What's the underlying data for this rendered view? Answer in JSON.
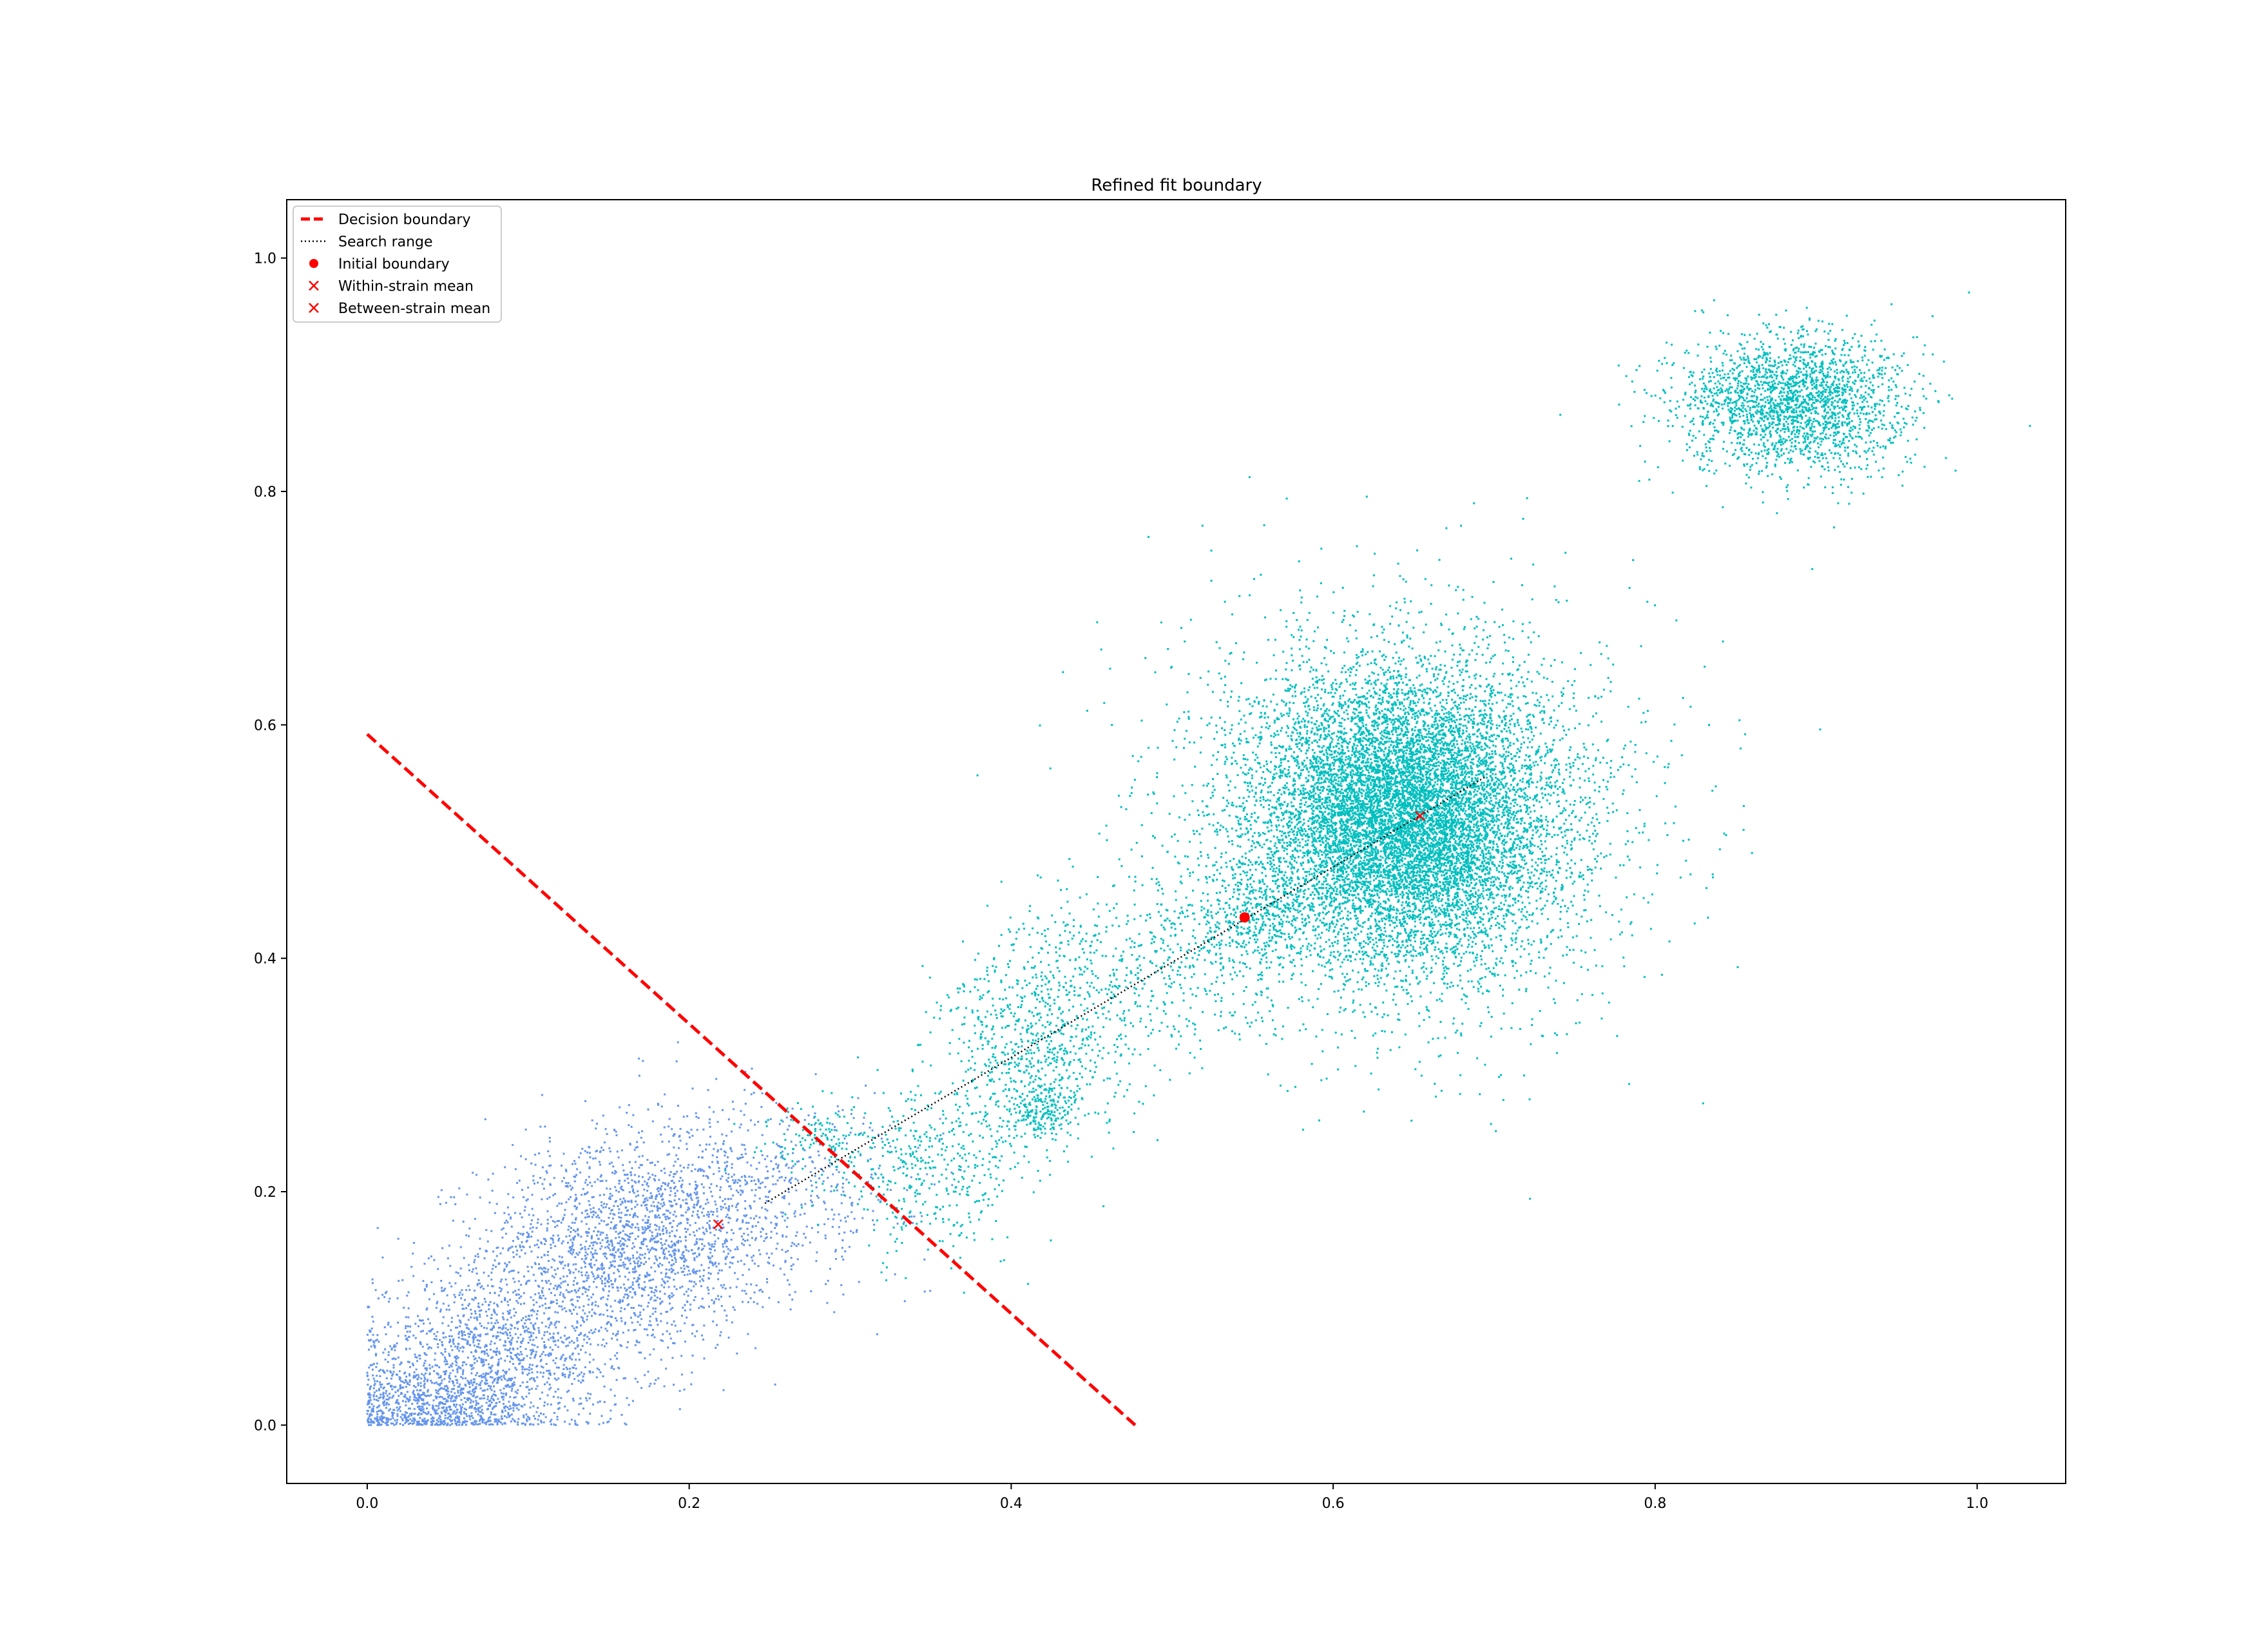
{
  "chart_data": {
    "type": "scatter",
    "title": "Refined fit boundary",
    "xlabel": "",
    "ylabel": "",
    "xlim": [
      -0.05,
      1.055
    ],
    "ylim": [
      -0.05,
      1.05
    ],
    "grid": false,
    "legend_placement": "top-left",
    "x_ticks": [
      {
        "value": 0.0,
        "label": "0.0"
      },
      {
        "value": 0.2,
        "label": "0.2"
      },
      {
        "value": 0.4,
        "label": "0.4"
      },
      {
        "value": 0.6,
        "label": "0.6"
      },
      {
        "value": 0.8,
        "label": "0.8"
      },
      {
        "value": 1.0,
        "label": "1.0"
      }
    ],
    "y_ticks": [
      {
        "value": 0.0,
        "label": "0.0"
      },
      {
        "value": 0.2,
        "label": "0.2"
      },
      {
        "value": 0.4,
        "label": "0.4"
      },
      {
        "value": 0.6,
        "label": "0.6"
      },
      {
        "value": 0.8,
        "label": "0.8"
      },
      {
        "value": 1.0,
        "label": "1.0"
      }
    ],
    "series": [
      {
        "kind": "points",
        "color": "#6495ed",
        "clusters": [
          {
            "center": [
              0.16,
              0.15
            ],
            "spread": [
              0.045,
              0.04
            ],
            "count": 1500
          },
          {
            "center": [
              0.08,
              0.06
            ],
            "spread": [
              0.045,
              0.035
            ],
            "count": 1400
          },
          {
            "center": [
              0.04,
              0.015
            ],
            "spread": [
              0.03,
              0.015
            ],
            "count": 700
          },
          {
            "center": [
              0.2,
              0.19
            ],
            "spread": [
              0.05,
              0.045
            ],
            "count": 700
          },
          {
            "center": [
              0.27,
              0.21
            ],
            "spread": [
              0.04,
              0.035
            ],
            "count": 250
          }
        ]
      },
      {
        "kind": "points",
        "color": "#00bfbf",
        "clusters": [
          {
            "center": [
              0.645,
              0.52
            ],
            "spread": [
              0.045,
              0.06
            ],
            "count": 9000
          },
          {
            "center": [
              0.645,
              0.52
            ],
            "spread": [
              0.075,
              0.09
            ],
            "count": 2500
          },
          {
            "center": [
              0.885,
              0.875
            ],
            "spread": [
              0.035,
              0.03
            ],
            "count": 2200
          },
          {
            "center": [
              0.415,
              0.32
            ],
            "spread": [
              0.03,
              0.04
            ],
            "count": 700
          },
          {
            "center": [
              0.5,
              0.4
            ],
            "spread": [
              0.04,
              0.04
            ],
            "count": 450
          },
          {
            "center": [
              0.35,
              0.22
            ],
            "spread": [
              0.03,
              0.035
            ],
            "count": 450
          },
          {
            "center": [
              0.555,
              0.44
            ],
            "spread": [
              0.02,
              0.025
            ],
            "count": 350
          },
          {
            "center": [
              0.42,
              0.27
            ],
            "spread": [
              0.012,
              0.01
            ],
            "count": 180
          },
          {
            "center": [
              0.42,
              0.4
            ],
            "spread": [
              0.02,
              0.03
            ],
            "count": 120
          },
          {
            "center": [
              0.28,
              0.245
            ],
            "spread": [
              0.02,
              0.015
            ],
            "count": 120
          }
        ]
      },
      {
        "kind": "line",
        "name": "Decision boundary",
        "color": "#ff0000",
        "style": "dashed",
        "x": [
          0.0,
          0.477
        ],
        "y": [
          0.592,
          0.0
        ]
      },
      {
        "kind": "line",
        "name": "Search range",
        "color": "#000000",
        "style": "dotted",
        "x": [
          0.247,
          0.694
        ],
        "y": [
          0.19,
          0.555
        ]
      },
      {
        "kind": "marker",
        "name": "Initial boundary",
        "color": "#ff0000",
        "marker": "dot",
        "x": [
          0.545
        ],
        "y": [
          0.435
        ]
      },
      {
        "kind": "marker",
        "name": "Within-strain mean",
        "color": "#ff0000",
        "marker": "x",
        "x": [
          0.218
        ],
        "y": [
          0.172
        ]
      },
      {
        "kind": "marker",
        "name": "Between-strain mean",
        "color": "#ff0000",
        "marker": "x",
        "x": [
          0.654
        ],
        "y": [
          0.522
        ]
      }
    ],
    "legend": [
      {
        "label": "Decision boundary",
        "symbol": "dashed-line",
        "color": "#ff0000"
      },
      {
        "label": "Search range",
        "symbol": "dotted-line",
        "color": "#000000"
      },
      {
        "label": "Initial boundary",
        "symbol": "dot",
        "color": "#ff0000"
      },
      {
        "label": "Within-strain mean",
        "symbol": "x",
        "color": "#ff0000"
      },
      {
        "label": "Between-strain mean",
        "symbol": "x",
        "color": "#ff0000"
      }
    ]
  }
}
